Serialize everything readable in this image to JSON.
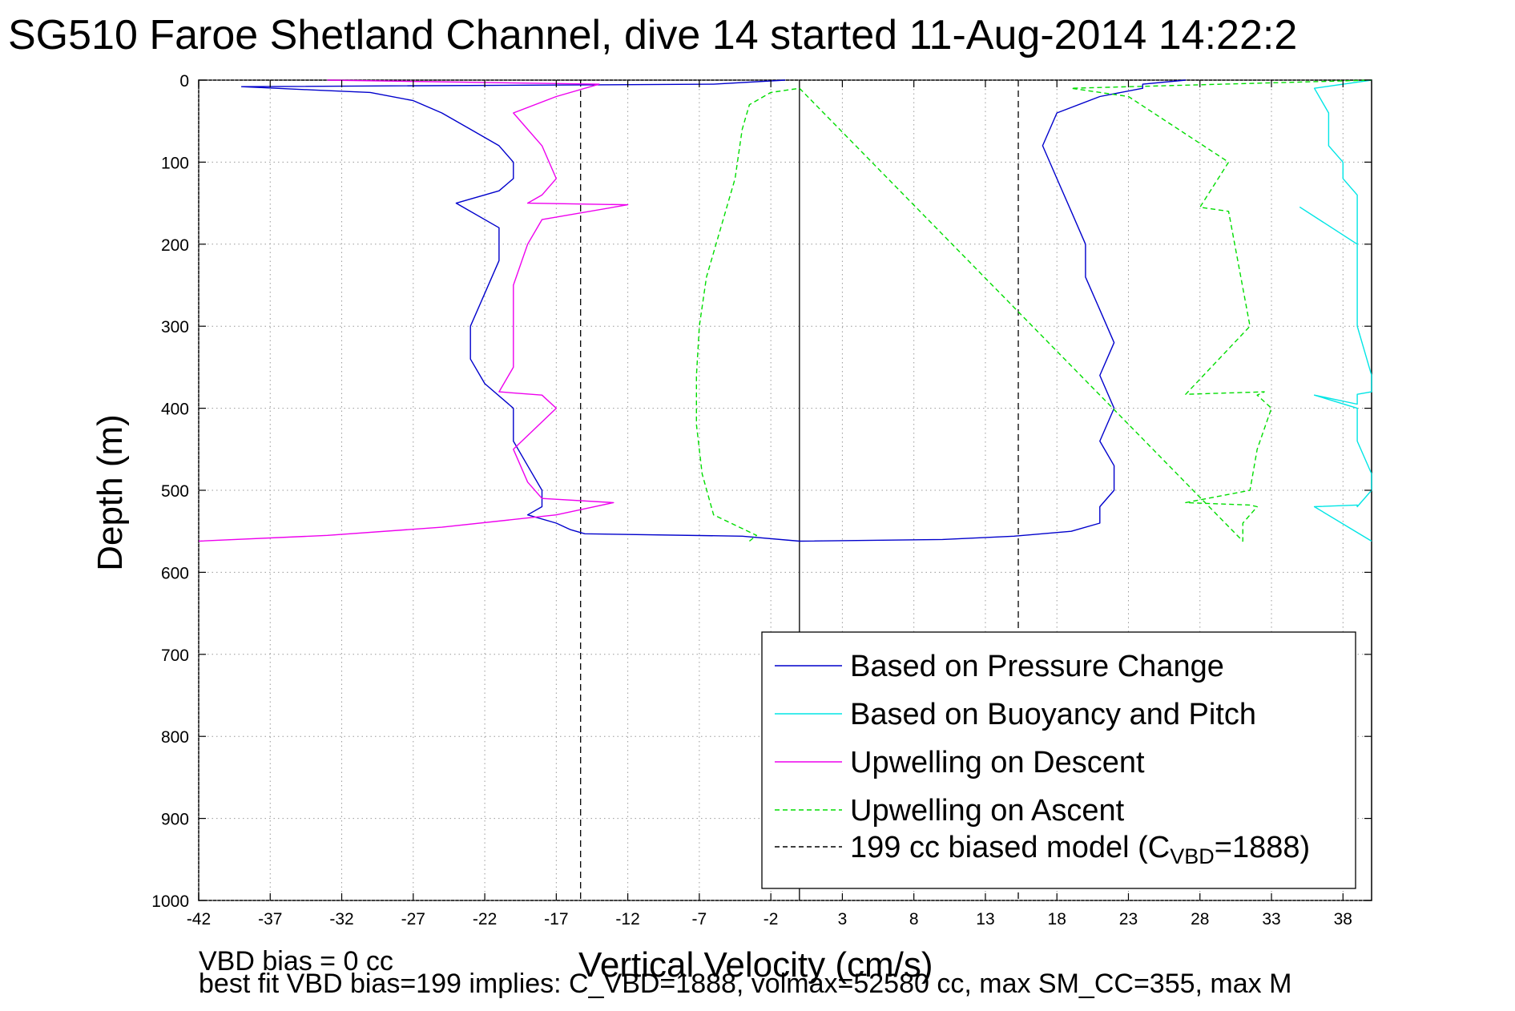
{
  "chart_data": {
    "type": "line",
    "title": "SG510 Faroe Shetland Channel, dive 14 started 11-Aug-2014 14:22:2",
    "xlabel": "Vertical Velocity (cm/s)",
    "ylabel": "Depth (m)",
    "xlim": [
      -42,
      40
    ],
    "ylim": [
      0,
      1000
    ],
    "y_reversed": true,
    "grid": true,
    "x_ticks": [
      -42,
      -37,
      -32,
      -27,
      -22,
      -17,
      -12,
      -7,
      -2,
      3,
      8,
      13,
      18,
      23,
      28,
      33,
      38
    ],
    "y_ticks": [
      0,
      100,
      200,
      300,
      400,
      500,
      600,
      700,
      800,
      900,
      1000
    ],
    "legend_position": "bottom-right",
    "reference_lines": [
      {
        "x": 0,
        "style": "solid",
        "color": "#000000"
      },
      {
        "x": -15.3,
        "style": "dashed",
        "color": "#000000"
      },
      {
        "x": 15.3,
        "style": "dashed",
        "color": "#000000"
      }
    ],
    "series": [
      {
        "name": "Based on Pressure Change",
        "color": "#0000cc",
        "style": "solid",
        "x": [
          -1,
          -6,
          -39,
          -34,
          -30,
          -27,
          -25,
          -23,
          -21,
          -20,
          -20,
          -21,
          -24,
          -21,
          -21,
          -22,
          -23,
          -23,
          -22,
          -20,
          -20,
          -19,
          -18,
          -18,
          -19,
          -17,
          -16,
          -15,
          -4,
          0
        ],
        "y": [
          0,
          5,
          8,
          12,
          15,
          25,
          40,
          60,
          80,
          100,
          120,
          135,
          150,
          180,
          220,
          260,
          300,
          340,
          370,
          400,
          440,
          470,
          500,
          520,
          530,
          540,
          548,
          553,
          556,
          562
        ],
        "x2": [
          0,
          10,
          15,
          19,
          21,
          21,
          22,
          22,
          21,
          22,
          21,
          22,
          21,
          20,
          20,
          19,
          18,
          17,
          18,
          21,
          24,
          24,
          27
        ],
        "y2": [
          562,
          560,
          556,
          550,
          540,
          520,
          500,
          470,
          440,
          400,
          360,
          320,
          280,
          240,
          200,
          160,
          120,
          80,
          40,
          20,
          10,
          5,
          0
        ]
      },
      {
        "name": "Based on Buoyancy and Pitch",
        "color": "#00e5e5",
        "style": "solid",
        "x": [
          40,
          36,
          37,
          37,
          38,
          38,
          39,
          39,
          39,
          39,
          35,
          39,
          39,
          40,
          40,
          39,
          39,
          36,
          39,
          39,
          40,
          40,
          39,
          39,
          36,
          40
        ],
        "y": [
          0,
          10,
          40,
          80,
          100,
          120,
          140,
          152,
          160,
          200,
          155,
          200,
          300,
          360,
          380,
          383,
          395,
          384,
          400,
          440,
          480,
          500,
          520,
          518,
          520,
          562
        ]
      },
      {
        "name": "Upwelling on Descent",
        "color": "#ee00ee",
        "style": "solid",
        "x": [
          -33,
          -14,
          -17,
          -20,
          -18,
          -17,
          -18,
          -19,
          -12,
          -18,
          -19,
          -20,
          -20,
          -20,
          -21,
          -18,
          -17,
          -20,
          -19,
          -18,
          -13,
          -17,
          -25,
          -33,
          -42
        ],
        "y": [
          0,
          5,
          20,
          40,
          80,
          120,
          140,
          150,
          152,
          170,
          200,
          250,
          300,
          350,
          380,
          384,
          400,
          450,
          490,
          510,
          515,
          530,
          545,
          555,
          562
        ]
      },
      {
        "name": "Upwelling on Ascent",
        "color": "#00dd00",
        "style": "dashed",
        "x": [
          -3.5,
          -3,
          -6,
          -6.8,
          -7.2,
          -7.2,
          -7,
          -6.5,
          -5.5,
          -4.5,
          -4,
          -3.5,
          -2,
          0,
          31,
          31,
          32,
          31.5,
          27,
          31.5,
          32,
          33,
          32,
          32.5,
          27,
          31.5,
          30,
          28,
          30,
          23,
          19,
          40
        ],
        "y": [
          562,
          555,
          530,
          480,
          420,
          360,
          300,
          240,
          180,
          120,
          60,
          30,
          15,
          10,
          562,
          540,
          520,
          518,
          515,
          500,
          450,
          400,
          384,
          380,
          383,
          300,
          160,
          155,
          100,
          20,
          10,
          0
        ]
      },
      {
        "name": "199 cc biased model (C",
        "name_sub": "VBD",
        "name_suffix": "=1888)",
        "color": "#000000",
        "style": "dashed",
        "x": [],
        "y": []
      }
    ],
    "footnotes": [
      "VBD bias = 0 cc",
      "best fit VBD bias=199 implies: C_VBD=1888, volmax=52580 cc, max SM_CC=355, max M"
    ]
  }
}
